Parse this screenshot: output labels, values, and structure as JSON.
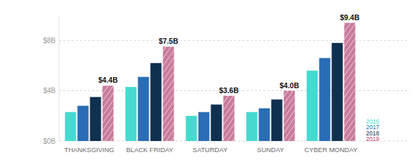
{
  "chart_data": {
    "type": "bar",
    "categories": [
      "THANKSGIVING",
      "BLACK FRIDAY",
      "SATURDAY",
      "SUNDAY",
      "CYBER MONDAY"
    ],
    "series": [
      {
        "name": "2016",
        "color": "#46d9cf",
        "values": [
          2.3,
          4.3,
          2.0,
          2.3,
          5.6
        ]
      },
      {
        "name": "2017",
        "color": "#2a6db5",
        "values": [
          2.8,
          5.1,
          2.3,
          2.6,
          6.6
        ]
      },
      {
        "name": "2018",
        "color": "#10304f",
        "values": [
          3.5,
          6.2,
          2.9,
          3.3,
          7.8
        ]
      },
      {
        "name": "2019",
        "color": "#c97b9c",
        "values": [
          4.4,
          7.5,
          3.6,
          4.0,
          9.4
        ],
        "data_labels": true,
        "value_labels": [
          "$4.4B",
          "$7.5B",
          "$3.6B",
          "$4.0B",
          "$9.4B"
        ]
      }
    ],
    "ylim": [
      0,
      10
    ],
    "yticks": [
      {
        "value": 0,
        "label": "$0B"
      },
      {
        "value": 4,
        "label": "$4B"
      },
      {
        "value": 8,
        "label": "$8B"
      }
    ],
    "grid": true,
    "legend": "lower right"
  }
}
